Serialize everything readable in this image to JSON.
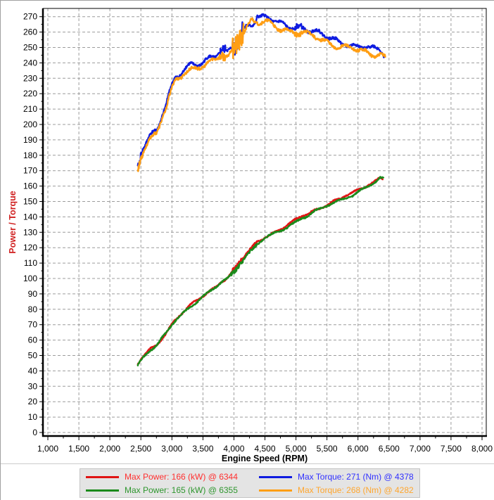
{
  "window": {
    "background": "#ffffff",
    "frame_color": "#a0a0a0"
  },
  "chart_data": {
    "type": "line",
    "title": "",
    "xlabel": "Engine Speed (RPM)",
    "ylabel": "Power / Torque",
    "legend_position": "bottom",
    "grid": {
      "on": true,
      "color": "#9c9c9c",
      "dash": "4 3"
    },
    "axis_color": "#000000",
    "xlim": [
      1000,
      8000
    ],
    "ylim": [
      0,
      270
    ],
    "x_tick_values": [
      1000,
      1500,
      2000,
      2500,
      3000,
      3500,
      4000,
      4500,
      5000,
      5500,
      6000,
      6500,
      7000,
      7500,
      8000
    ],
    "x_tick_labels": [
      "1,000",
      "1,500",
      "2,000",
      "2,500",
      "3,000",
      "3,500",
      "4,000",
      "4,500",
      "5,000",
      "5,500",
      "6,000",
      "6,500",
      "7,000",
      "7,500",
      "8,000"
    ],
    "x_minor_step": 250,
    "y_tick_values": [
      0,
      10,
      20,
      30,
      40,
      50,
      60,
      70,
      80,
      90,
      100,
      110,
      120,
      130,
      140,
      150,
      160,
      170,
      180,
      190,
      200,
      210,
      220,
      230,
      240,
      250,
      260,
      270
    ],
    "y_minor_step": 5,
    "series": [
      {
        "name": "Max Power: 166 (kW) @ 6344",
        "kind": "power",
        "unit": "kW",
        "color": "#e01414",
        "legend_text_color": "#ff3030",
        "max": {
          "value": 166,
          "rpm": 6344
        },
        "points": [
          [
            2450,
            44
          ],
          [
            2500,
            47.5
          ],
          [
            2550,
            50
          ],
          [
            2600,
            52
          ],
          [
            2650,
            54
          ],
          [
            2700,
            55
          ],
          [
            2750,
            56.5
          ],
          [
            2800,
            59
          ],
          [
            2850,
            62
          ],
          [
            2900,
            64.5
          ],
          [
            2950,
            67.5
          ],
          [
            3000,
            70.5
          ],
          [
            3050,
            73
          ],
          [
            3100,
            75
          ],
          [
            3150,
            77
          ],
          [
            3200,
            79
          ],
          [
            3300,
            82.5
          ],
          [
            3400,
            85.5
          ],
          [
            3500,
            88.5
          ],
          [
            3600,
            91.5
          ],
          [
            3700,
            94.5
          ],
          [
            3800,
            98.5
          ],
          [
            3900,
            100.5
          ],
          [
            4000,
            105.5
          ],
          [
            4100,
            111
          ],
          [
            4200,
            116
          ],
          [
            4300,
            120
          ],
          [
            4378,
            124
          ],
          [
            4450,
            125.5
          ],
          [
            4500,
            127
          ],
          [
            4600,
            129
          ],
          [
            4700,
            131
          ],
          [
            4800,
            133
          ],
          [
            4900,
            135.5
          ],
          [
            5000,
            138
          ],
          [
            5100,
            140.5
          ],
          [
            5200,
            142
          ],
          [
            5300,
            144.5
          ],
          [
            5400,
            146
          ],
          [
            5500,
            148
          ],
          [
            5600,
            150
          ],
          [
            5700,
            151.5
          ],
          [
            5800,
            153.5
          ],
          [
            5900,
            155
          ],
          [
            6000,
            157.5
          ],
          [
            6100,
            159.5
          ],
          [
            6200,
            161.5
          ],
          [
            6300,
            164
          ],
          [
            6344,
            166
          ],
          [
            6400,
            165
          ]
        ]
      },
      {
        "name": "Max Power: 165 (kW) @ 6355",
        "kind": "power",
        "unit": "kW",
        "color": "#1b8a1b",
        "legend_text_color": "#2e962e",
        "max": {
          "value": 165,
          "rpm": 6355
        },
        "points": [
          [
            2450,
            43.5
          ],
          [
            2500,
            47
          ],
          [
            2550,
            49.5
          ],
          [
            2600,
            51.5
          ],
          [
            2650,
            53.5
          ],
          [
            2700,
            54.5
          ],
          [
            2750,
            56
          ],
          [
            2800,
            58.5
          ],
          [
            2850,
            61.5
          ],
          [
            2900,
            64
          ],
          [
            2950,
            67
          ],
          [
            3000,
            70
          ],
          [
            3050,
            72.5
          ],
          [
            3100,
            74.5
          ],
          [
            3150,
            76.5
          ],
          [
            3200,
            78.5
          ],
          [
            3300,
            82
          ],
          [
            3400,
            85
          ],
          [
            3500,
            88
          ],
          [
            3600,
            91
          ],
          [
            3700,
            94
          ],
          [
            3800,
            97.5
          ],
          [
            3900,
            100
          ],
          [
            4000,
            104.5
          ],
          [
            4100,
            110
          ],
          [
            4200,
            115
          ],
          [
            4300,
            119
          ],
          [
            4378,
            122.5
          ],
          [
            4450,
            124.5
          ],
          [
            4500,
            126
          ],
          [
            4600,
            128
          ],
          [
            4700,
            130
          ],
          [
            4800,
            132
          ],
          [
            4900,
            134.5
          ],
          [
            5000,
            137
          ],
          [
            5100,
            139.5
          ],
          [
            5200,
            141
          ],
          [
            5300,
            143.5
          ],
          [
            5400,
            145
          ],
          [
            5500,
            147
          ],
          [
            5600,
            149
          ],
          [
            5700,
            150.5
          ],
          [
            5800,
            152.5
          ],
          [
            5900,
            154
          ],
          [
            6000,
            156.5
          ],
          [
            6100,
            158.5
          ],
          [
            6200,
            160.5
          ],
          [
            6300,
            163
          ],
          [
            6355,
            165
          ],
          [
            6410,
            164.5
          ]
        ]
      },
      {
        "name": "Max Torque: 271 (Nm) @ 4378",
        "kind": "torque",
        "unit": "Nm",
        "color": "#0f1ce0",
        "legend_text_color": "#3030ff",
        "max": {
          "value": 271,
          "rpm": 4378
        },
        "points": [
          [
            2450,
            171
          ],
          [
            2480,
            176
          ],
          [
            2500,
            181
          ],
          [
            2550,
            187
          ],
          [
            2600,
            191
          ],
          [
            2650,
            194
          ],
          [
            2700,
            195
          ],
          [
            2750,
            196
          ],
          [
            2800,
            201
          ],
          [
            2850,
            208
          ],
          [
            2900,
            212
          ],
          [
            2950,
            219
          ],
          [
            3000,
            224
          ],
          [
            3050,
            229
          ],
          [
            3100,
            231
          ],
          [
            3150,
            233
          ],
          [
            3200,
            236
          ],
          [
            3300,
            239
          ],
          [
            3400,
            240
          ],
          [
            3500,
            241
          ],
          [
            3600,
            243
          ],
          [
            3700,
            244
          ],
          [
            3800,
            248
          ],
          [
            3900,
            246
          ],
          [
            4000,
            252
          ],
          [
            4050,
            255
          ],
          [
            4100,
            259
          ],
          [
            4150,
            262
          ],
          [
            4200,
            264
          ],
          [
            4250,
            265
          ],
          [
            4300,
            266
          ],
          [
            4350,
            268
          ],
          [
            4378,
            271
          ],
          [
            4420,
            269
          ],
          [
            4500,
            269
          ],
          [
            4600,
            268
          ],
          [
            4700,
            266
          ],
          [
            4800,
            265
          ],
          [
            4900,
            264
          ],
          [
            5000,
            264
          ],
          [
            5100,
            263
          ],
          [
            5200,
            261
          ],
          [
            5300,
            260
          ],
          [
            5400,
            258
          ],
          [
            5500,
            257
          ],
          [
            5600,
            256
          ],
          [
            5700,
            254
          ],
          [
            5800,
            253
          ],
          [
            5900,
            251
          ],
          [
            6000,
            250
          ],
          [
            6100,
            250
          ],
          [
            6200,
            249
          ],
          [
            6300,
            249
          ],
          [
            6344,
            250
          ],
          [
            6400,
            247
          ],
          [
            6420,
            246
          ]
        ]
      },
      {
        "name": "Max Torque: 268 (Nm) @ 4282",
        "kind": "torque",
        "unit": "Nm",
        "color": "#ff9e14",
        "legend_text_color": "#ffa62e",
        "max": {
          "value": 268,
          "rpm": 4282
        },
        "points": [
          [
            2450,
            170
          ],
          [
            2480,
            174
          ],
          [
            2500,
            179
          ],
          [
            2550,
            185
          ],
          [
            2600,
            189
          ],
          [
            2650,
            192
          ],
          [
            2700,
            193
          ],
          [
            2750,
            194
          ],
          [
            2800,
            199
          ],
          [
            2850,
            206
          ],
          [
            2900,
            210
          ],
          [
            2950,
            217
          ],
          [
            3000,
            222
          ],
          [
            3050,
            227
          ],
          [
            3100,
            229
          ],
          [
            3150,
            231
          ],
          [
            3200,
            234
          ],
          [
            3300,
            236
          ],
          [
            3400,
            237
          ],
          [
            3500,
            239
          ],
          [
            3600,
            240
          ],
          [
            3700,
            241
          ],
          [
            3800,
            245
          ],
          [
            3900,
            243
          ],
          [
            4000,
            250
          ],
          [
            4050,
            253
          ],
          [
            4100,
            257
          ],
          [
            4150,
            260
          ],
          [
            4200,
            263
          ],
          [
            4250,
            265
          ],
          [
            4282,
            268
          ],
          [
            4350,
            266
          ],
          [
            4420,
            266
          ],
          [
            4500,
            266
          ],
          [
            4600,
            265
          ],
          [
            4700,
            263
          ],
          [
            4800,
            262
          ],
          [
            4900,
            261
          ],
          [
            5000,
            260
          ],
          [
            5100,
            259
          ],
          [
            5200,
            258
          ],
          [
            5300,
            257
          ],
          [
            5400,
            255
          ],
          [
            5500,
            254
          ],
          [
            5600,
            252
          ],
          [
            5700,
            251
          ],
          [
            5800,
            250
          ],
          [
            5900,
            249
          ],
          [
            6000,
            248
          ],
          [
            6100,
            247
          ],
          [
            6200,
            246
          ],
          [
            6300,
            246
          ],
          [
            6360,
            246
          ],
          [
            6440,
            244
          ]
        ]
      }
    ]
  },
  "legend": {
    "background": "#e4e4e4",
    "border_color": "#c4c4c4",
    "order": [
      0,
      2,
      1,
      3
    ]
  }
}
